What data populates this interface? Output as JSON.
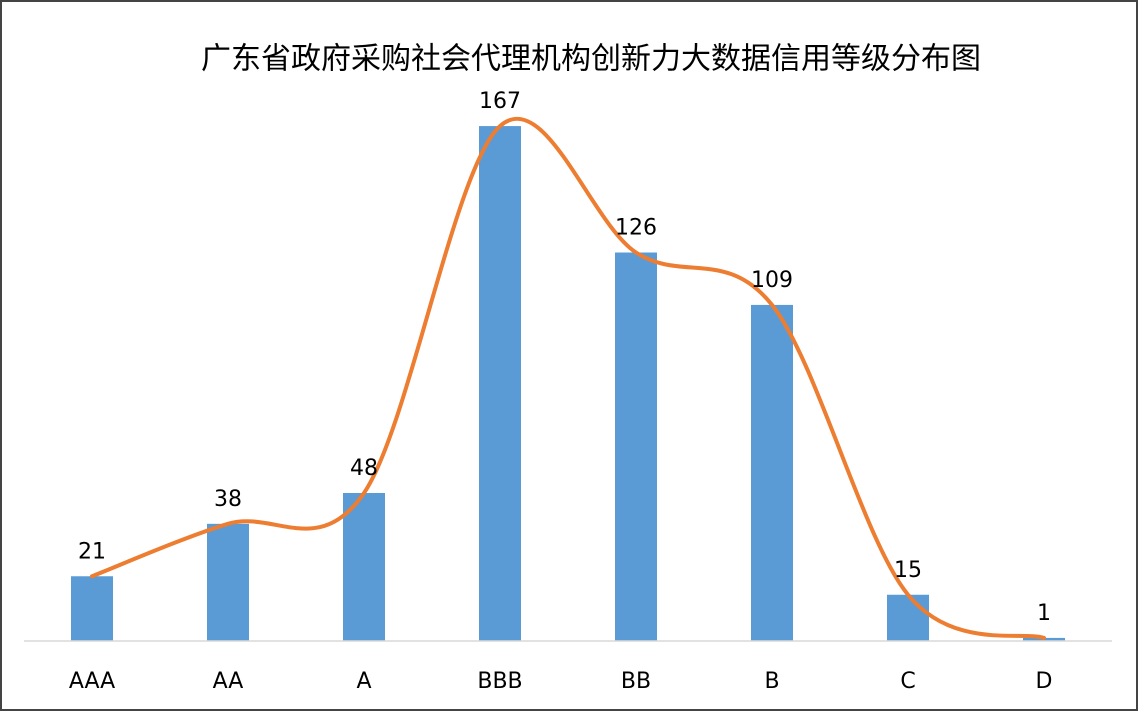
{
  "chart_data": {
    "type": "bar",
    "title": "广东省政府采购社会代理机构创新力大数据信用等级分布图",
    "categories": [
      "AAA",
      "AA",
      "A",
      "BBB",
      "BB",
      "B",
      "C",
      "D"
    ],
    "values": [
      21,
      38,
      48,
      167,
      126,
      109,
      15,
      1
    ],
    "color": "#5b9bd5",
    "line_color": "#ed7d31",
    "smooth_line": true,
    "ylim": [
      0,
      180
    ]
  }
}
